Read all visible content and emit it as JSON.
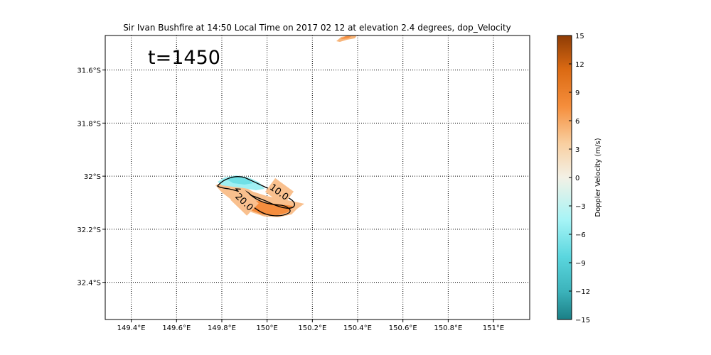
{
  "chart_data": {
    "type": "heatmap",
    "title": "Sir Ivan Bushfire at 14:50 Local Time on 2017 02 12 at elevation 2.4 degrees, dop_Velocity",
    "annotation": "t=1450",
    "x_ticks": [
      {
        "value": 149.4,
        "label": "149.4°E"
      },
      {
        "value": 149.6,
        "label": "149.6°E"
      },
      {
        "value": 149.8,
        "label": "149.8°E"
      },
      {
        "value": 150.0,
        "label": "150°E"
      },
      {
        "value": 150.2,
        "label": "150.2°E"
      },
      {
        "value": 150.4,
        "label": "150.4°E"
      },
      {
        "value": 150.6,
        "label": "150.6°E"
      },
      {
        "value": 150.8,
        "label": "150.8°E"
      },
      {
        "value": 151.0,
        "label": "151°E"
      }
    ],
    "y_ticks": [
      {
        "value": -31.6,
        "label": "31.6°S"
      },
      {
        "value": -31.8,
        "label": "31.8°S"
      },
      {
        "value": -32.0,
        "label": "32°S"
      },
      {
        "value": -32.2,
        "label": "32.2°S"
      },
      {
        "value": -32.4,
        "label": "32.4°S"
      }
    ],
    "xlim": [
      149.285,
      151.16
    ],
    "ylim": [
      -32.54,
      -31.47
    ],
    "grid": true,
    "colorbar": {
      "label": "Doppler Velocity (m/s)",
      "range": [
        -15,
        15
      ],
      "ticks": [
        {
          "value": 15,
          "label": "15"
        },
        {
          "value": 12,
          "label": "12"
        },
        {
          "value": 9,
          "label": "9"
        },
        {
          "value": 6,
          "label": "6"
        },
        {
          "value": 3,
          "label": "3"
        },
        {
          "value": 0,
          "label": "0"
        },
        {
          "value": -3,
          "label": "−3"
        },
        {
          "value": -6,
          "label": "−6"
        },
        {
          "value": -9,
          "label": "−9"
        },
        {
          "value": -12,
          "label": "−12"
        },
        {
          "value": -15,
          "label": "−15"
        }
      ],
      "colors": [
        "#1b7f86",
        "#5ad6de",
        "#a6f4f6",
        "#f3f1e6",
        "#f9cfa0",
        "#f58e3c",
        "#db6a13",
        "#8e3c05"
      ]
    },
    "contours": [
      {
        "label": "10.0"
      },
      {
        "label": "20.0"
      }
    ]
  }
}
